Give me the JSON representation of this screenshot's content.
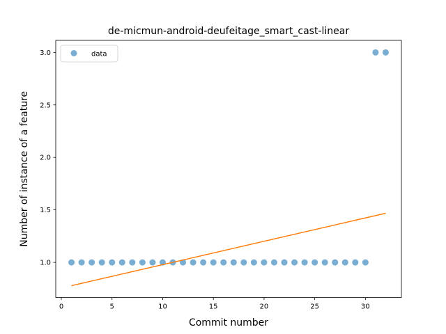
{
  "chart_data": {
    "type": "scatter",
    "title": "de-micmun-android-deufeitage_smart_cast-linear",
    "xlabel": "Commit number",
    "ylabel": "Number of instance of a feature",
    "xlim": [
      -0.55,
      33.55
    ],
    "ylim": [
      0.665,
      3.115
    ],
    "xticks": [
      0,
      5,
      10,
      15,
      20,
      25,
      30
    ],
    "yticks": [
      1.0,
      1.5,
      2.0,
      2.5,
      3.0
    ],
    "xtick_labels": [
      "0",
      "5",
      "10",
      "15",
      "20",
      "25",
      "30"
    ],
    "ytick_labels": [
      "1.0",
      "1.5",
      "2.0",
      "2.5",
      "3.0"
    ],
    "grid": false,
    "legend": {
      "position": "top-left",
      "entries": [
        "data"
      ]
    },
    "series": [
      {
        "name": "data",
        "kind": "scatter",
        "color": "#1f77b4",
        "x": [
          1,
          2,
          3,
          4,
          5,
          6,
          7,
          8,
          9,
          10,
          11,
          12,
          13,
          14,
          15,
          16,
          17,
          18,
          19,
          20,
          21,
          22,
          23,
          24,
          25,
          26,
          27,
          28,
          29,
          30,
          31,
          32
        ],
        "y": [
          1,
          1,
          1,
          1,
          1,
          1,
          1,
          1,
          1,
          1,
          1,
          1,
          1,
          1,
          1,
          1,
          1,
          1,
          1,
          1,
          1,
          1,
          1,
          1,
          1,
          1,
          1,
          1,
          1,
          1,
          3,
          3
        ]
      },
      {
        "kind": "line",
        "color": "#ff7f0e",
        "x": [
          1,
          32
        ],
        "y": [
          0.778,
          1.468
        ]
      }
    ]
  }
}
